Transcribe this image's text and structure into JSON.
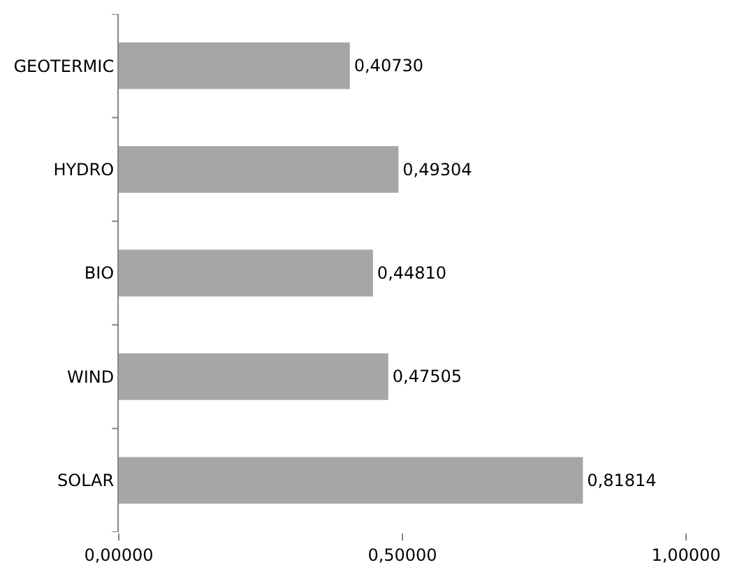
{
  "chart_data": {
    "type": "bar",
    "orientation": "horizontal",
    "categories": [
      "GEOTERMIC",
      "HYDRO",
      "BIO",
      "WIND",
      "SOLAR"
    ],
    "values": [
      0.4073,
      0.49304,
      0.4481,
      0.47505,
      0.81814
    ],
    "value_labels": [
      "0,40730",
      "0,49304",
      "0,44810",
      "0,47505",
      "0,81814"
    ],
    "color": "#a6a6a6",
    "xlim": [
      0,
      1
    ],
    "xticks": [
      {
        "value": 0,
        "label": "0,00000"
      },
      {
        "value": 0.5,
        "label": "0,50000"
      },
      {
        "value": 1,
        "label": "1,00000"
      }
    ],
    "grid": false,
    "legend": false
  }
}
